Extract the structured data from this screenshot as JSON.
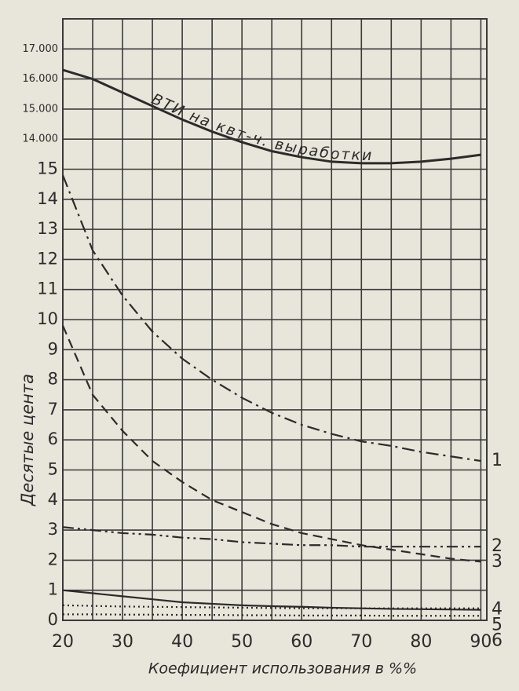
{
  "chart_data": {
    "type": "line",
    "xlabel": "Коефициент использования в %%",
    "ylabel": "Десятые цента",
    "x": [
      20,
      25,
      30,
      35,
      40,
      45,
      50,
      55,
      60,
      65,
      70,
      75,
      80,
      85,
      90
    ],
    "xlim": [
      20,
      91
    ],
    "xticks": [
      20,
      30,
      40,
      50,
      60,
      70,
      80,
      90
    ],
    "xgrid": [
      20,
      25,
      30,
      35,
      40,
      45,
      50,
      55,
      60,
      65,
      70,
      75,
      80,
      85,
      90
    ],
    "ylim": [
      0,
      20
    ],
    "yticks": [
      0,
      1,
      2,
      3,
      4,
      5,
      6,
      7,
      8,
      9,
      10,
      11,
      12,
      13,
      14,
      15
    ],
    "y2lim": [
      -2000,
      18000
    ],
    "y2ticks": [
      {
        "value": 14000,
        "label": "14.000"
      },
      {
        "value": 15000,
        "label": "15.000"
      },
      {
        "value": 16000,
        "label": "16.000"
      },
      {
        "value": 17000,
        "label": "17.000"
      }
    ],
    "grid": true,
    "series": [
      {
        "name": "ВТИ на квт-ч. выработки",
        "axis": "y2",
        "color": "#2b2b2b",
        "dash": "solid",
        "values": [
          16300,
          16000,
          15550,
          15100,
          14650,
          14250,
          13900,
          13600,
          13400,
          13250,
          13200,
          13200,
          13250,
          13350,
          13480
        ]
      },
      {
        "name": "1",
        "color": "#2b2b2b",
        "dash": "dashdot",
        "values": [
          14.8,
          12.3,
          10.8,
          9.6,
          8.7,
          8.0,
          7.4,
          6.9,
          6.5,
          6.2,
          5.95,
          5.8,
          5.6,
          5.45,
          5.3
        ]
      },
      {
        "name": "2",
        "color": "#2b2b2b",
        "dash": "dashdotdot",
        "values": [
          3.1,
          3.0,
          2.9,
          2.85,
          2.75,
          2.7,
          2.6,
          2.55,
          2.5,
          2.5,
          2.45,
          2.45,
          2.45,
          2.45,
          2.45
        ]
      },
      {
        "name": "3",
        "color": "#2b2b2b",
        "dash": "dash",
        "values": [
          9.8,
          7.5,
          6.3,
          5.3,
          4.6,
          4.0,
          3.6,
          3.2,
          2.9,
          2.7,
          2.5,
          2.35,
          2.2,
          2.05,
          1.95
        ]
      },
      {
        "name": "4",
        "color": "#2b2b2b",
        "dash": "solid",
        "values": [
          1.0,
          0.9,
          0.8,
          0.7,
          0.6,
          0.55,
          0.5,
          0.47,
          0.45,
          0.42,
          0.4,
          0.38,
          0.37,
          0.36,
          0.35
        ]
      },
      {
        "name": "5",
        "color": "#2b2b2b",
        "dash": "dot",
        "values": [
          0.5,
          0.48,
          0.46,
          0.45,
          0.44,
          0.43,
          0.42,
          0.41,
          0.4,
          0.4,
          0.4,
          0.4,
          0.4,
          0.4,
          0.4
        ]
      },
      {
        "name": "6",
        "color": "#2b2b2b",
        "dash": "dot",
        "values": [
          0.2,
          0.2,
          0.19,
          0.19,
          0.18,
          0.18,
          0.17,
          0.17,
          0.16,
          0.16,
          0.16,
          0.15,
          0.15,
          0.15,
          0.15
        ]
      }
    ]
  }
}
